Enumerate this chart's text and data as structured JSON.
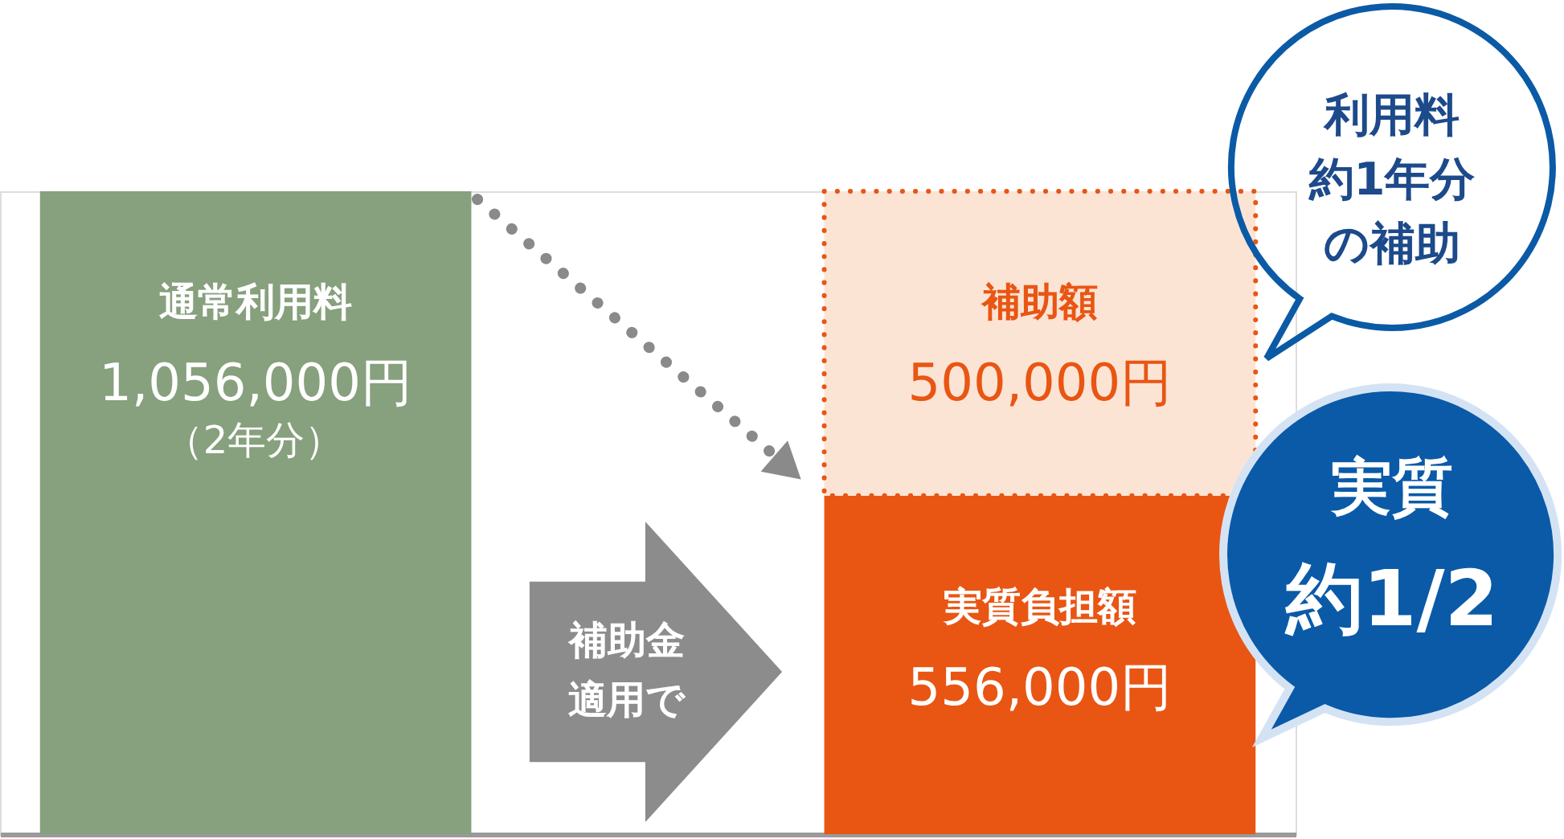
{
  "chart_data": {
    "type": "bar",
    "categories": [
      null,
      null
    ],
    "stacked": true,
    "series": [
      {
        "name": "通常利用料",
        "color": "#87a07d",
        "values": [
          1056000,
          null
        ],
        "value_labels": [
          "1,056,000円",
          null
        ]
      },
      {
        "name": "実質負担額",
        "color": "#e95513",
        "values": [
          null,
          556000
        ],
        "value_labels": [
          null,
          "556,000円"
        ]
      },
      {
        "name": "補助額",
        "color": "#fce4d5",
        "values": [
          null,
          500000
        ],
        "value_labels": [
          null,
          "500,000円"
        ],
        "line_style": "dotted"
      }
    ],
    "annotations": [
      "（2年分）",
      "補助金適用で",
      "利用料約1年分の補助",
      "実質約1/2"
    ]
  }
}
